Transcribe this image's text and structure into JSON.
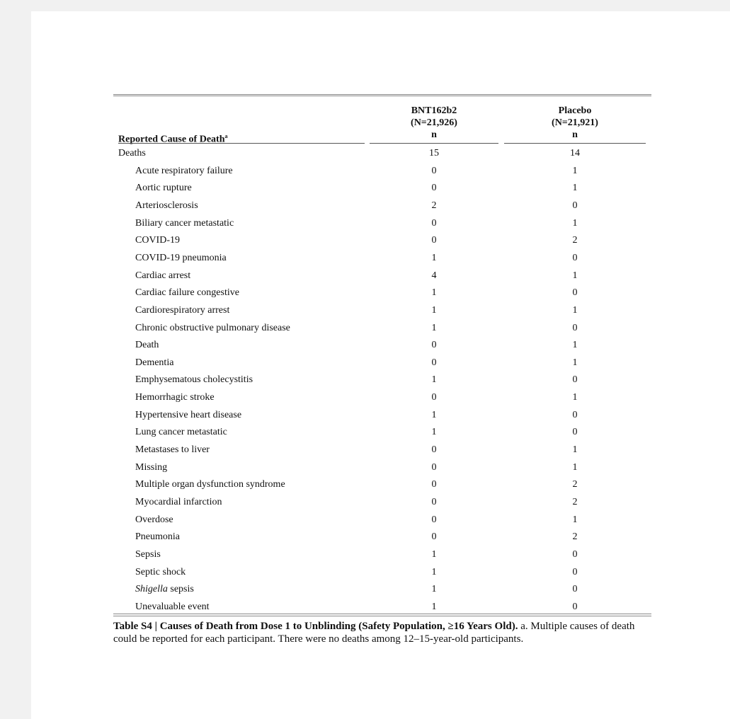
{
  "table": {
    "header": {
      "label_col": "Reported Cause of Death",
      "label_footnote": "a",
      "col1_name": "BNT162b2",
      "col1_n": "(N=21,926)",
      "col1_unit": "n",
      "col2_name": "Placebo",
      "col2_n": "(N=21,921)",
      "col2_unit": "n"
    },
    "rows": [
      {
        "label": "Deaths",
        "bnt": "15",
        "placebo": "14",
        "sub": false
      },
      {
        "label": "Acute respiratory failure",
        "bnt": "0",
        "placebo": "1",
        "sub": true
      },
      {
        "label": "Aortic rupture",
        "bnt": "0",
        "placebo": "1",
        "sub": true
      },
      {
        "label": "Arteriosclerosis",
        "bnt": "2",
        "placebo": "0",
        "sub": true
      },
      {
        "label": "Biliary cancer metastatic",
        "bnt": "0",
        "placebo": "1",
        "sub": true
      },
      {
        "label": "COVID-19",
        "bnt": "0",
        "placebo": "2",
        "sub": true
      },
      {
        "label": "COVID-19 pneumonia",
        "bnt": "1",
        "placebo": "0",
        "sub": true
      },
      {
        "label": "Cardiac arrest",
        "bnt": "4",
        "placebo": "1",
        "sub": true
      },
      {
        "label": "Cardiac failure congestive",
        "bnt": "1",
        "placebo": "0",
        "sub": true
      },
      {
        "label": "Cardiorespiratory arrest",
        "bnt": "1",
        "placebo": "1",
        "sub": true
      },
      {
        "label": "Chronic obstructive pulmonary disease",
        "bnt": "1",
        "placebo": "0",
        "sub": true
      },
      {
        "label": "Death",
        "bnt": "0",
        "placebo": "1",
        "sub": true
      },
      {
        "label": "Dementia",
        "bnt": "0",
        "placebo": "1",
        "sub": true
      },
      {
        "label": "Emphysematous cholecystitis",
        "bnt": "1",
        "placebo": "0",
        "sub": true
      },
      {
        "label": "Hemorrhagic stroke",
        "bnt": "0",
        "placebo": "1",
        "sub": true
      },
      {
        "label": "Hypertensive heart disease",
        "bnt": "1",
        "placebo": "0",
        "sub": true
      },
      {
        "label": "Lung cancer metastatic",
        "bnt": "1",
        "placebo": "0",
        "sub": true
      },
      {
        "label": "Metastases to liver",
        "bnt": "0",
        "placebo": "1",
        "sub": true
      },
      {
        "label": "Missing",
        "bnt": "0",
        "placebo": "1",
        "sub": true
      },
      {
        "label": "Multiple organ dysfunction syndrome",
        "bnt": "0",
        "placebo": "2",
        "sub": true
      },
      {
        "label": "Myocardial infarction",
        "bnt": "0",
        "placebo": "2",
        "sub": true
      },
      {
        "label": "Overdose",
        "bnt": "0",
        "placebo": "1",
        "sub": true
      },
      {
        "label": "Pneumonia",
        "bnt": "0",
        "placebo": "2",
        "sub": true
      },
      {
        "label": "Sepsis",
        "bnt": "1",
        "placebo": "0",
        "sub": true
      },
      {
        "label": "Septic shock",
        "bnt": "1",
        "placebo": "0",
        "sub": true
      },
      {
        "label": "Shigella sepsis",
        "italic_part": "Shigella",
        "rest": " sepsis",
        "bnt": "1",
        "placebo": "0",
        "sub": true
      },
      {
        "label": "Unevaluable event",
        "bnt": "1",
        "placebo": "0",
        "sub": true
      }
    ]
  },
  "caption": {
    "title": "Table S4 | Causes of Death from Dose 1 to Unblinding (Safety Population, ≥16 Years Old).",
    "text": " a. Multiple causes of death could be reported for each participant. There were no deaths among 12–15-year-old participants."
  }
}
